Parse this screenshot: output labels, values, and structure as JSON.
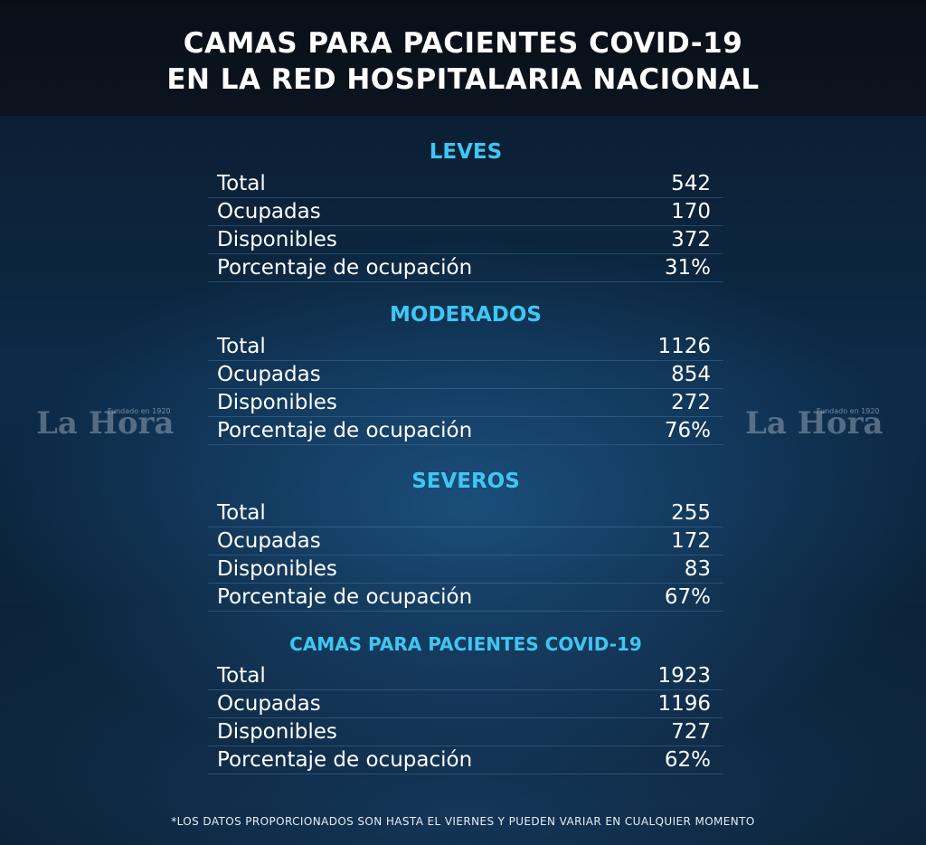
{
  "title": {
    "line1": "CAMAS PARA PACIENTES COVID-19",
    "line2": "EN LA RED HOSPITALARIA NACIONAL"
  },
  "sections": [
    {
      "title": "LEVES",
      "rows": [
        {
          "label": "Total",
          "value": "542"
        },
        {
          "label": "Ocupadas",
          "value": "170"
        },
        {
          "label": "Disponibles",
          "value": "372"
        },
        {
          "label": "Porcentaje de ocupación",
          "value": "31%"
        }
      ]
    },
    {
      "title": "MODERADOS",
      "rows": [
        {
          "label": "Total",
          "value": "1126"
        },
        {
          "label": "Ocupadas",
          "value": "854"
        },
        {
          "label": "Disponibles",
          "value": "272"
        },
        {
          "label": "Porcentaje de ocupación",
          "value": "76%"
        }
      ]
    },
    {
      "title": "SEVEROS",
      "rows": [
        {
          "label": "Total",
          "value": "255"
        },
        {
          "label": "Ocupadas",
          "value": "172"
        },
        {
          "label": "Disponibles",
          "value": "83"
        },
        {
          "label": "Porcentaje de ocupación",
          "value": "67%"
        }
      ]
    },
    {
      "title": "CAMAS PARA PACIENTES COVID-19",
      "rows": [
        {
          "label": "Total",
          "value": "1923"
        },
        {
          "label": "Ocupadas",
          "value": "1196"
        },
        {
          "label": "Disponibles",
          "value": "727"
        },
        {
          "label": "Porcentaje de ocupación",
          "value": "62%"
        }
      ]
    }
  ],
  "watermark": {
    "text": "La Hora",
    "tagline": "Fundado en 1920"
  },
  "footnote": "*LOS DATOS PROPORCIONADOS SON HASTA EL VIERNES Y PUEDEN VARIAR EN CUALQUIER MOMENTO"
}
